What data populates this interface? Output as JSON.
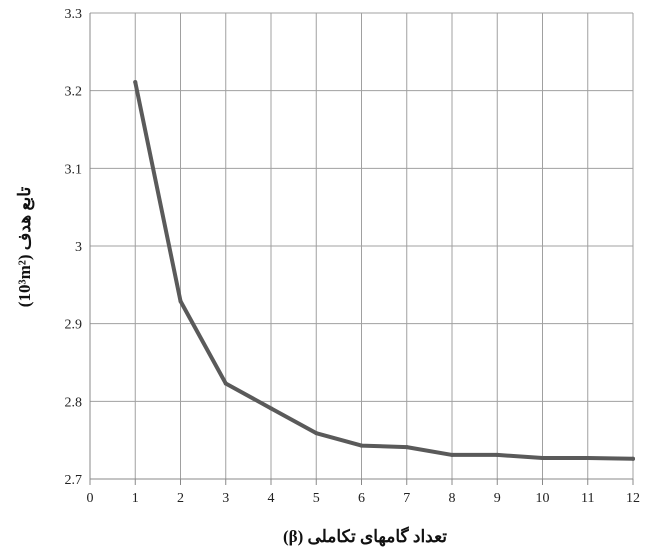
{
  "chart_data": {
    "type": "line",
    "title": "",
    "xlabel": "تعداد گامهای تکاملی (β)",
    "ylabel": "تابع هدف (10³m²)",
    "x_ticks": [
      "0",
      "1",
      "2",
      "3",
      "4",
      "5",
      "6",
      "7",
      "8",
      "9",
      "10",
      "11",
      "12"
    ],
    "y_ticks": [
      "2.7",
      "2.8",
      "2.9",
      "3",
      "3.1",
      "3.2",
      "3.3"
    ],
    "xlim": [
      0,
      12
    ],
    "ylim": [
      2.7,
      3.3
    ],
    "grid": true,
    "legend": "none",
    "series": [
      {
        "color": "#5a5a5a",
        "x": [
          1,
          2,
          3,
          4,
          5,
          6,
          7,
          8,
          9,
          10,
          11,
          12
        ],
        "values": [
          3.211,
          2.929,
          2.823,
          2.791,
          2.759,
          2.743,
          2.741,
          2.731,
          2.731,
          2.727,
          2.727,
          2.726
        ]
      }
    ]
  },
  "colors": {
    "grid": "#a0a0a0",
    "axis": "#888888",
    "line": "#5a5a5a"
  }
}
